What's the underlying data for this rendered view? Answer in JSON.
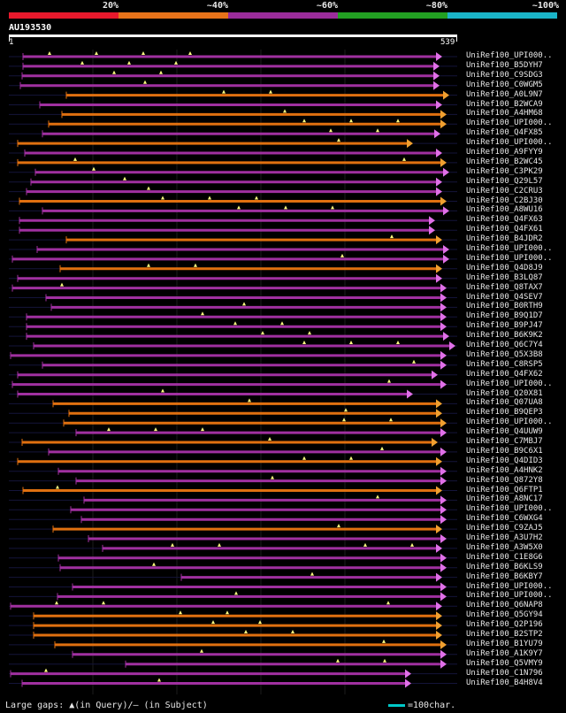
{
  "scale": {
    "labels": [
      "20%",
      "~40%",
      "~60%",
      "~80%",
      "~100%"
    ],
    "colors": [
      "#e8192c",
      "#e8731a",
      "#9b2c9b",
      "#22a022",
      "#1ab4c8"
    ]
  },
  "query": {
    "name": "AU193530",
    "start": "1",
    "end": "539"
  },
  "colors": {
    "purple": "#a030a0",
    "orange": "#e07010",
    "arrow_purple": "#e070e8",
    "arrow_orange": "#f0a030",
    "gap_marker": "#ffff80",
    "frame": "#1c1c1c"
  },
  "legend": {
    "gaps_text": "Large gaps: ▲(in Query)/– (in Subject)",
    "scale_text": "=100char."
  },
  "hits": [
    {
      "label": "UniRef100_UPI000..",
      "color": "purple"
    },
    {
      "label": "UniRef100_B5DYH7",
      "color": "purple"
    },
    {
      "label": "UniRef100_C9SDG3",
      "color": "purple"
    },
    {
      "label": "UniRef100_C0WGM5",
      "color": "purple"
    },
    {
      "label": "UniRef100_A0L9N7",
      "color": "orange"
    },
    {
      "label": "UniRef100_B2WCA9",
      "color": "purple"
    },
    {
      "label": "UniRef100_A4HM68",
      "color": "orange"
    },
    {
      "label": "UniRef100_UPI000..",
      "color": "orange"
    },
    {
      "label": "UniRef100_Q4FX85",
      "color": "purple"
    },
    {
      "label": "UniRef100_UPI000..",
      "color": "orange"
    },
    {
      "label": "UniRef100_A9FYY9",
      "color": "purple"
    },
    {
      "label": "UniRef100_B2WC45",
      "color": "orange"
    },
    {
      "label": "UniRef100_C3PK29",
      "color": "purple"
    },
    {
      "label": "UniRef100_Q29L57",
      "color": "purple"
    },
    {
      "label": "UniRef100_C2CRU3",
      "color": "purple"
    },
    {
      "label": "UniRef100_C2BJ30",
      "color": "orange"
    },
    {
      "label": "UniRef100_A8WU16",
      "color": "purple"
    },
    {
      "label": "UniRef100_Q4FX63",
      "color": "purple"
    },
    {
      "label": "UniRef100_Q4FX61",
      "color": "purple"
    },
    {
      "label": "UniRef100_B4JDR2",
      "color": "orange"
    },
    {
      "label": "UniRef100_UPI000..",
      "color": "purple"
    },
    {
      "label": "UniRef100_UPI000..",
      "color": "purple"
    },
    {
      "label": "UniRef100_Q4D8J9",
      "color": "orange"
    },
    {
      "label": "UniRef100_B3LQ87",
      "color": "purple"
    },
    {
      "label": "UniRef100_Q8TAX7",
      "color": "purple"
    },
    {
      "label": "UniRef100_Q4SEV7",
      "color": "purple"
    },
    {
      "label": "UniRef100_B0RTH9",
      "color": "purple"
    },
    {
      "label": "UniRef100_B9Q1D7",
      "color": "purple"
    },
    {
      "label": "UniRef100_B9PJ47",
      "color": "purple"
    },
    {
      "label": "UniRef100_B6K9K2",
      "color": "purple"
    },
    {
      "label": "UniRef100_Q6C7Y4",
      "color": "purple"
    },
    {
      "label": "UniRef100_Q5X3B8",
      "color": "purple"
    },
    {
      "label": "UniRef100_C8RSP5",
      "color": "purple"
    },
    {
      "label": "UniRef100_Q4FX62",
      "color": "purple"
    },
    {
      "label": "UniRef100_UPI000..",
      "color": "purple"
    },
    {
      "label": "UniRef100_Q20X81",
      "color": "purple"
    },
    {
      "label": "UniRef100_Q07UA8",
      "color": "orange"
    },
    {
      "label": "UniRef100_B9QEP3",
      "color": "orange"
    },
    {
      "label": "UniRef100_UPI000..",
      "color": "orange"
    },
    {
      "label": "UniRef100_Q4UUW9",
      "color": "purple"
    },
    {
      "label": "UniRef100_C7MBJ7",
      "color": "orange"
    },
    {
      "label": "UniRef100_B9C6X1",
      "color": "purple"
    },
    {
      "label": "UniRef100_Q4DID3",
      "color": "orange"
    },
    {
      "label": "UniRef100_A4HNK2",
      "color": "purple"
    },
    {
      "label": "UniRef100_Q872Y8",
      "color": "purple"
    },
    {
      "label": "UniRef100_Q6FTP1",
      "color": "orange"
    },
    {
      "label": "UniRef100_A8NC17",
      "color": "purple"
    },
    {
      "label": "UniRef100_UPI000..",
      "color": "purple"
    },
    {
      "label": "UniRef100_C6WXG4",
      "color": "purple"
    },
    {
      "label": "UniRef100_C9ZAJ5",
      "color": "orange"
    },
    {
      "label": "UniRef100_A3U7H2",
      "color": "purple"
    },
    {
      "label": "UniRef100_A3W5X0",
      "color": "purple"
    },
    {
      "label": "UniRef100_C1E8G6",
      "color": "purple"
    },
    {
      "label": "UniRef100_B6KLS9",
      "color": "purple"
    },
    {
      "label": "UniRef100_B6KBY7",
      "color": "purple"
    },
    {
      "label": "UniRef100_UPI000..",
      "color": "purple"
    },
    {
      "label": "UniRef100_UPI000..",
      "color": "purple"
    },
    {
      "label": "UniRef100_Q6NAP8",
      "color": "purple"
    },
    {
      "label": "UniRef100_Q5GY94",
      "color": "orange"
    },
    {
      "label": "UniRef100_Q2P196",
      "color": "orange"
    },
    {
      "label": "UniRef100_B2STP2",
      "color": "orange"
    },
    {
      "label": "UniRef100_B1YU79",
      "color": "orange"
    },
    {
      "label": "UniRef100_A1K9Y7",
      "color": "purple"
    },
    {
      "label": "UniRef100_Q5VMY9",
      "color": "purple"
    },
    {
      "label": "UniRef100_C1N796",
      "color": "purple"
    },
    {
      "label": "UniRef100_B4H8V4",
      "color": "purple"
    }
  ]
}
